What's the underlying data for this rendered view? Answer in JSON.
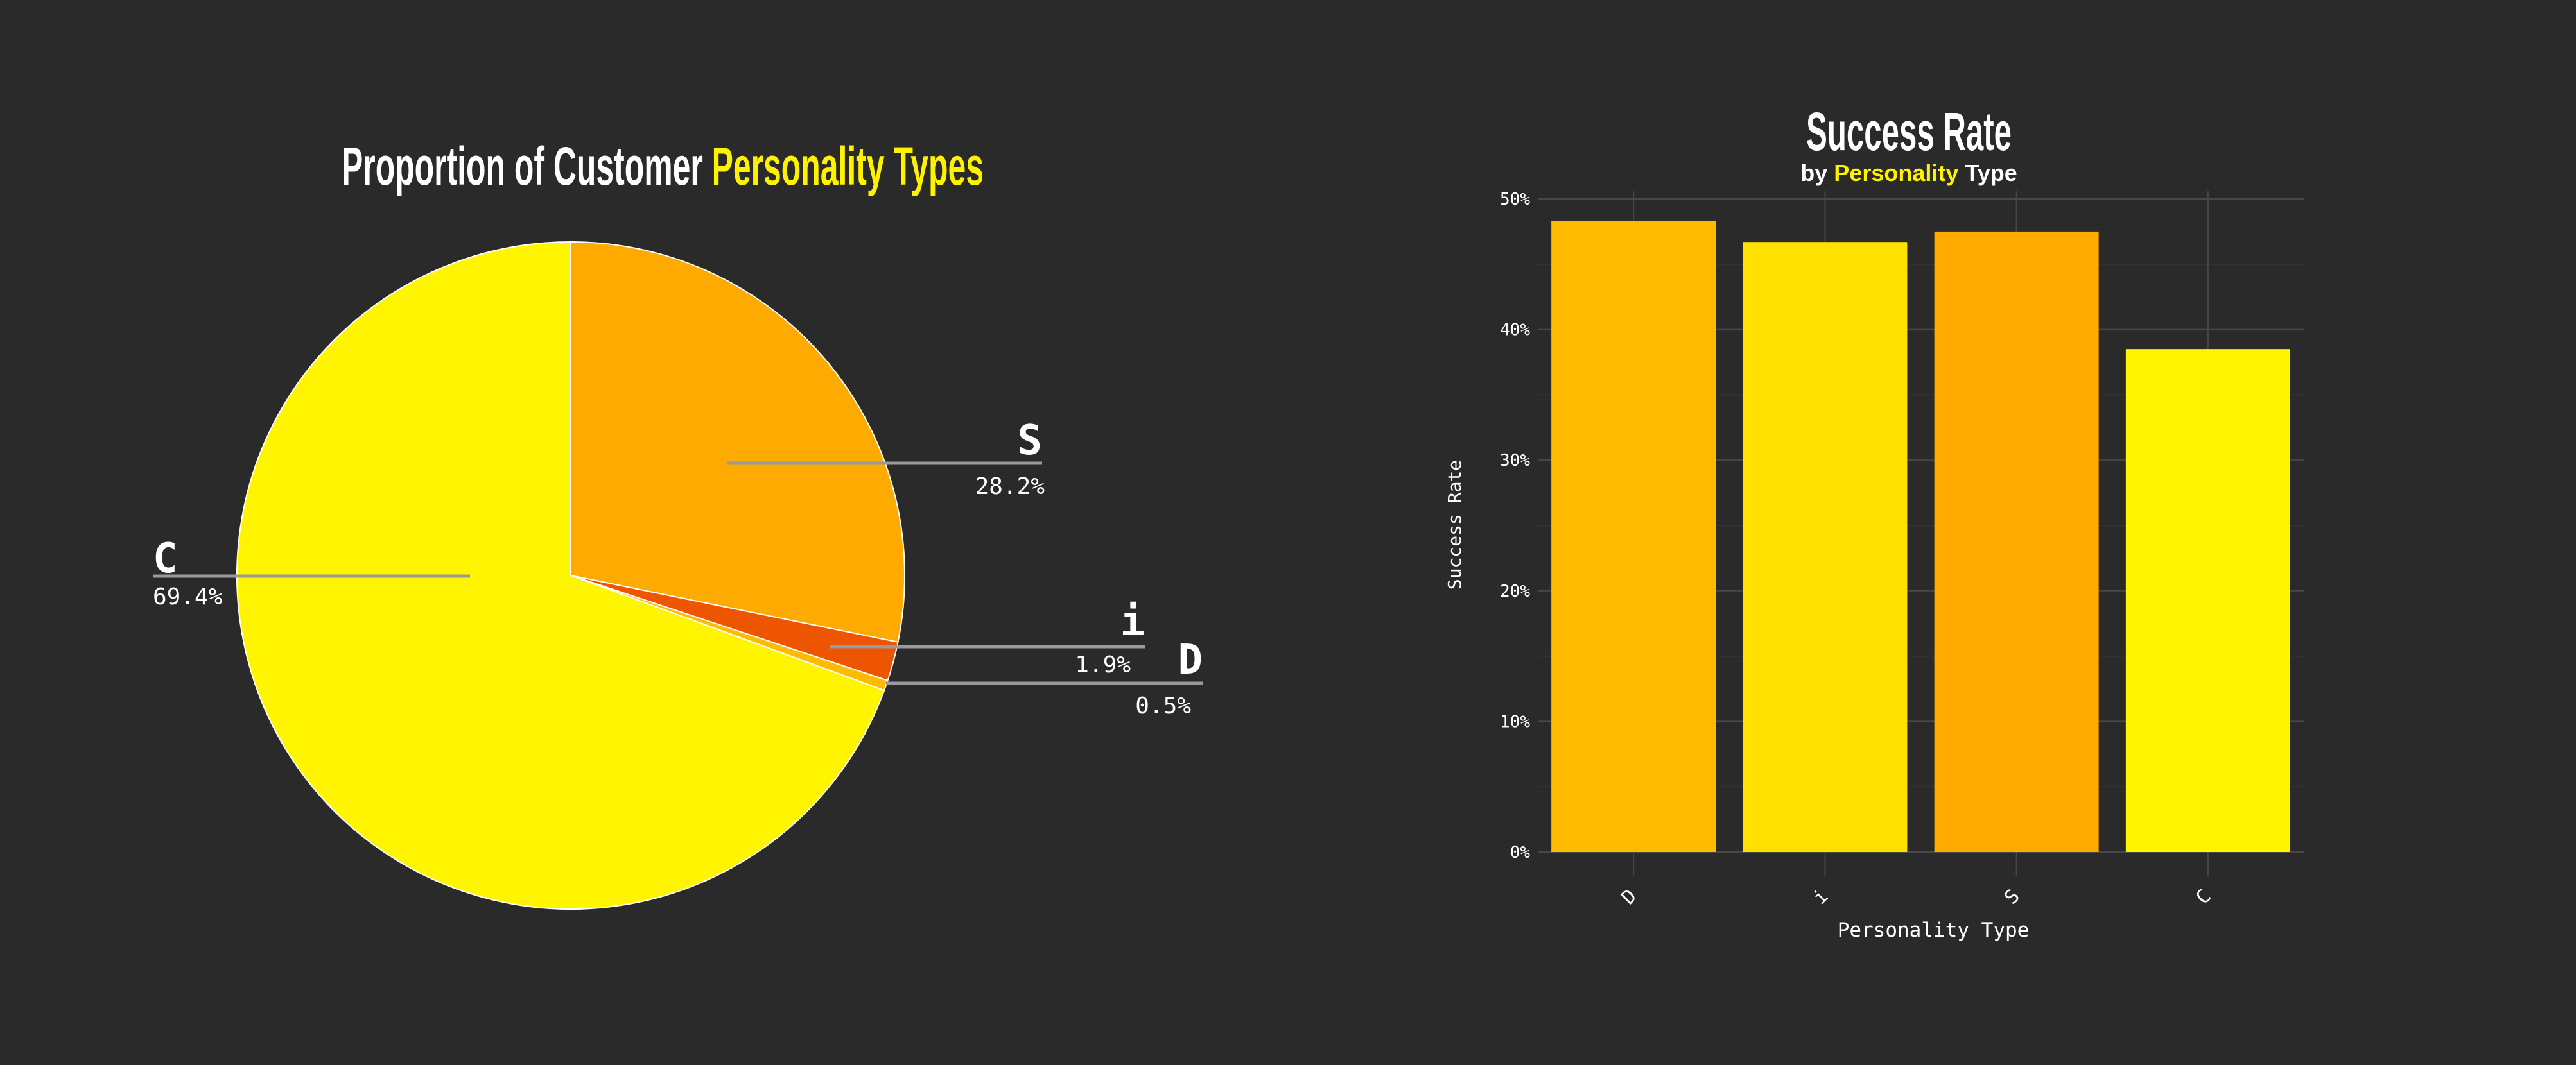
{
  "chart_data": [
    {
      "type": "pie",
      "title_prefix": "Proportion of Customer ",
      "title_highlight": "Personality Types",
      "slices": [
        {
          "label": "S",
          "value": 28.2,
          "value_label": "28.2%",
          "color": "#FFAA00"
        },
        {
          "label": "i",
          "value": 1.9,
          "value_label": "1.9%",
          "color": "#EE5500"
        },
        {
          "label": "D",
          "value": 0.5,
          "value_label": "0.5%",
          "color": "#FFBB00"
        },
        {
          "label": "C",
          "value": 69.4,
          "value_label": "69.4%",
          "color": "#FFF500"
        }
      ]
    },
    {
      "type": "bar",
      "title": "Success Rate",
      "subtitle_prefix": "by ",
      "subtitle_highlight": "Personality",
      "subtitle_suffix": " Type",
      "xlabel": "Personality Type",
      "ylabel": "Success Rate",
      "categories": [
        "D",
        "i",
        "S",
        "C"
      ],
      "values": [
        48.3,
        46.7,
        47.5,
        38.5
      ],
      "colors": [
        "#FFBB00",
        "#FFE000",
        "#FFAA00",
        "#FFF500"
      ],
      "ylim": [
        0,
        50
      ],
      "yticks": [
        0,
        10,
        20,
        30,
        40,
        50
      ],
      "ytick_labels": [
        "0%",
        "10%",
        "20%",
        "30%",
        "40%",
        "50%"
      ],
      "grid": true
    }
  ],
  "colors": {
    "background": "#2a2a2a",
    "highlight": "#FFF200",
    "text": "#ffffff",
    "leader_line": "#9a9a9a",
    "grid": "#444444"
  }
}
